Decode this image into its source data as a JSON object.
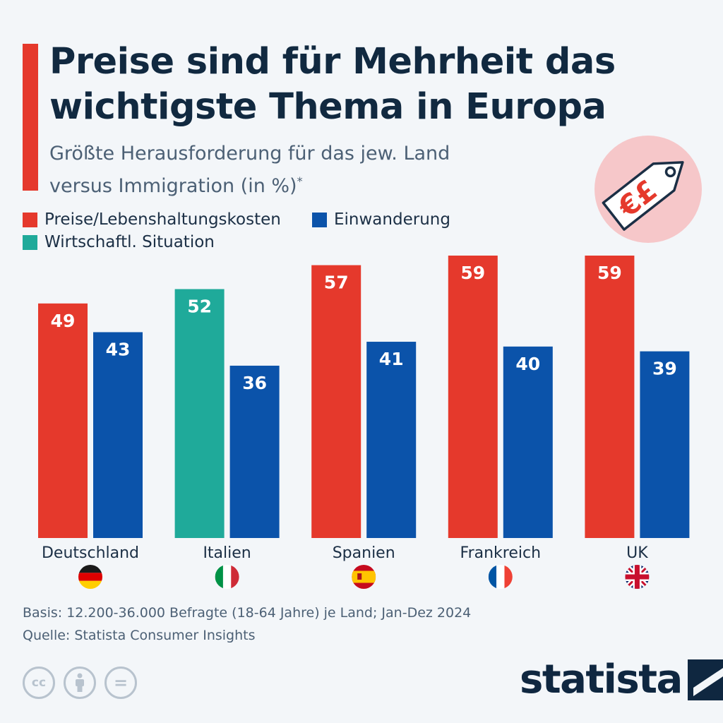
{
  "header": {
    "title": "Preise sind für Mehrheit das wichtigste Thema in Europa",
    "subtitle": "Größte Herausforderung für das jew. Land versus Immigration (in %)",
    "subtitle_marker": "*"
  },
  "icon": {
    "name": "price-tag-icon",
    "symbols": "€£",
    "colors": {
      "circle": "#f6c7c9",
      "tag": "#ffffff",
      "outline": "#1b2f45",
      "symbol": "#e5392c"
    }
  },
  "legend": [
    {
      "label": "Preise/Lebenshaltungskosten",
      "color": "#e5392c"
    },
    {
      "label": "Einwanderung",
      "color": "#0b53aa"
    },
    {
      "label": "Wirtschaftl. Situation",
      "color": "#1faa9a"
    }
  ],
  "chart_data": {
    "type": "bar",
    "categories": [
      "Deutschland",
      "Italien",
      "Spanien",
      "Frankreich",
      "UK"
    ],
    "series": [
      {
        "name": "Größte Herausforderung",
        "values": [
          49,
          52,
          57,
          59,
          59
        ],
        "colors": [
          "#e5392c",
          "#1faa9a",
          "#e5392c",
          "#e5392c",
          "#e5392c"
        ]
      },
      {
        "name": "Einwanderung",
        "values": [
          43,
          36,
          41,
          40,
          39
        ],
        "color": "#0b53aa"
      }
    ],
    "ylim": [
      0,
      59
    ],
    "grid": false,
    "data_labels": true,
    "flags": [
      "germany-flag-icon",
      "italy-flag-icon",
      "spain-flag-icon",
      "france-flag-icon",
      "uk-flag-icon"
    ]
  },
  "footer": {
    "basis": "Basis: 12.200-36.000 Befragte (18-64 Jahre) je Land; Jan-Dez 2024",
    "source": "Quelle: Statista Consumer Insights",
    "license_icons": [
      "cc-icon",
      "attribution-icon",
      "no-derivatives-icon"
    ],
    "cc_label": "cc",
    "eq_label": "=",
    "logo": "statista"
  },
  "colors": {
    "background": "#f3f6f9",
    "accent": "#e5392c",
    "title": "#112940"
  }
}
